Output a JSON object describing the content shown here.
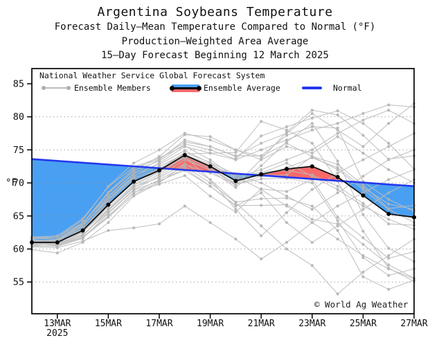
{
  "title": {
    "line1": "Argentina Soybeans Temperature",
    "line2": "Forecast Daily–Mean Temperature Compared to Normal (°F)",
    "line3": "Production–Weighted Area Average",
    "line4": "15–Day Forecast Beginning 12 March 2025"
  },
  "legend": {
    "header": "National Weather Service Global Forecast System",
    "members_label": "Ensemble Members",
    "average_label": "Ensemble Average",
    "normal_label": "Normal"
  },
  "watermark": "© World Ag Weather",
  "colors": {
    "member_line": "#bcbcbc",
    "member_dot": "#b2b2b2",
    "average_line": "#111111",
    "average_dot": "#000000",
    "normal_line": "#2438ee",
    "fill_above_normal": "#f96a6a",
    "fill_below_normal": "#49a0f2",
    "grid": "#8f8f8f",
    "frame": "#000000",
    "text": "#111111"
  },
  "chart_data": {
    "type": "line",
    "title": "Argentina Soybeans Temperature",
    "ylabel": "°F",
    "ylim": [
      50.2,
      87.3
    ],
    "y_ticks": [
      55,
      60,
      65,
      70,
      75,
      80,
      85
    ],
    "grid_levels": [
      55,
      60,
      65,
      70,
      75,
      80
    ],
    "grid": "dotted",
    "days": [
      12,
      13,
      14,
      15,
      16,
      17,
      18,
      19,
      20,
      21,
      22,
      23,
      24,
      25,
      26,
      27
    ],
    "x_tick_days": [
      13,
      15,
      17,
      19,
      21,
      23,
      25,
      27
    ],
    "x_tick_labels": [
      "13MAR",
      "15MAR",
      "17MAR",
      "19MAR",
      "21MAR",
      "23MAR",
      "25MAR",
      "27MAR"
    ],
    "x_year_label": "2025",
    "legend_position": "top-left-inside",
    "series": {
      "normal": {
        "name": "Normal",
        "values": [
          73.6,
          73.33,
          73.05,
          72.78,
          72.51,
          72.23,
          71.96,
          71.69,
          71.41,
          71.14,
          70.87,
          70.59,
          70.32,
          70.05,
          69.77,
          69.5
        ]
      },
      "ensemble_average": {
        "name": "Ensemble Average",
        "values": [
          61.0,
          61.0,
          62.8,
          66.7,
          70.2,
          71.9,
          74.2,
          72.5,
          70.3,
          71.3,
          72.1,
          72.5,
          70.9,
          68.1,
          65.3,
          64.8
        ]
      },
      "ensemble_members": {
        "name": "Ensemble Members",
        "approximate": true,
        "values": [
          [
            61.2,
            61.4,
            63.5,
            67.5,
            71.0,
            73.0,
            75.5,
            74.5,
            73.5,
            75.0,
            76.5,
            78.0,
            79.0,
            80.5,
            81.8,
            81.5
          ],
          [
            60.8,
            60.6,
            62.1,
            65.9,
            69.4,
            70.8,
            72.9,
            70.5,
            67.1,
            67.6,
            67.7,
            66.5,
            62.8,
            55.8,
            53.9,
            55.3
          ],
          [
            61.5,
            61.8,
            64.0,
            68.0,
            71.5,
            73.5,
            76.5,
            75.5,
            74.0,
            76.0,
            77.5,
            80.5,
            78.0,
            75.5,
            79.0,
            82.0
          ],
          [
            60.5,
            60.4,
            61.6,
            65.4,
            68.9,
            70.3,
            71.9,
            69.5,
            66.6,
            66.6,
            66.7,
            64.5,
            63.8,
            60.7,
            57.6,
            55.6
          ],
          [
            61.0,
            61.3,
            63.8,
            68.5,
            71.8,
            74.0,
            77.3,
            77.0,
            75.0,
            73.5,
            75.5,
            74.5,
            77.0,
            74.5,
            72.0,
            70.0
          ],
          [
            61.0,
            60.7,
            61.8,
            64.9,
            68.6,
            69.8,
            71.1,
            68.0,
            65.6,
            69.1,
            68.7,
            70.5,
            64.8,
            61.7,
            58.6,
            59.6
          ],
          [
            60.7,
            60.9,
            62.2,
            65.5,
            69.0,
            71.0,
            73.5,
            72.0,
            70.0,
            71.5,
            73.0,
            71.0,
            69.0,
            66.5,
            64.5,
            63.0
          ],
          [
            61.3,
            61.1,
            63.4,
            67.9,
            71.4,
            72.8,
            74.9,
            73.0,
            70.6,
            71.1,
            71.2,
            74.0,
            72.8,
            69.7,
            66.1,
            66.6
          ],
          [
            60.6,
            60.8,
            62.0,
            65.8,
            69.3,
            71.3,
            74.0,
            70.5,
            66.0,
            62.0,
            65.5,
            69.0,
            71.5,
            73.5,
            75.5,
            77.5
          ],
          [
            61.4,
            61.2,
            63.6,
            67.6,
            71.1,
            72.5,
            74.4,
            74.5,
            74.6,
            79.3,
            78.0,
            76.0,
            70.3,
            62.7,
            57.1,
            55.1
          ],
          [
            60.8,
            60.6,
            61.8,
            65.0,
            68.5,
            70.5,
            72.5,
            70.0,
            67.0,
            63.5,
            60.0,
            57.5,
            53.2,
            56.5,
            59.0,
            61.5
          ],
          [
            61.2,
            61.4,
            63.8,
            68.4,
            71.9,
            73.3,
            75.9,
            75.0,
            73.6,
            77.1,
            78.5,
            79.8,
            80.9,
            79.0,
            76.0,
            72.1
          ],
          [
            60.3,
            60.2,
            61.2,
            62.8,
            63.2,
            63.8,
            66.5,
            64.0,
            61.5,
            58.5,
            61.0,
            64.0,
            66.5,
            68.5,
            70.5,
            72.0
          ],
          [
            61.7,
            61.8,
            64.4,
            69.5,
            73.0,
            75.0,
            77.5,
            76.5,
            75.0,
            74.0,
            76.0,
            74.0,
            72.0,
            69.0,
            66.0,
            64.0
          ],
          [
            60.9,
            61.1,
            62.7,
            66.3,
            69.8,
            71.8,
            74.3,
            72.8,
            71.0,
            69.0,
            66.5,
            64.0,
            61.5,
            59.0,
            57.0,
            55.5
          ],
          [
            61.1,
            60.9,
            62.9,
            67.1,
            70.6,
            72.0,
            74.1,
            72.2,
            69.6,
            73.6,
            77.7,
            81.0,
            80.3,
            77.2,
            73.6,
            74.1
          ],
          [
            60.8,
            61.0,
            62.6,
            66.0,
            69.6,
            71.6,
            74.1,
            72.6,
            70.8,
            72.0,
            73.5,
            75.0,
            77.5,
            79.5,
            81.0,
            79.0
          ],
          [
            61.2,
            61.0,
            63.0,
            67.4,
            70.8,
            72.2,
            74.3,
            72.4,
            69.8,
            70.6,
            70.7,
            70.0,
            64.3,
            58.7,
            56.0,
            57.0
          ],
          [
            61.1,
            61.3,
            63.1,
            66.8,
            70.1,
            72.1,
            74.6,
            73.1,
            71.3,
            70.0,
            68.0,
            66.0,
            68.5,
            71.0,
            73.5,
            75.0
          ],
          [
            60.9,
            60.7,
            62.5,
            66.6,
            70.3,
            71.7,
            73.8,
            71.9,
            69.3,
            72.6,
            76.2,
            79.0,
            73.3,
            65.2,
            60.1,
            58.1
          ],
          [
            59.9,
            59.4,
            61.0,
            64.0,
            68.0,
            70.0,
            72.8,
            71.5,
            69.8,
            71.0,
            72.3,
            73.8,
            72.3,
            69.3,
            66.8,
            66.0
          ],
          [
            61.8,
            62.0,
            64.6,
            69.4,
            72.4,
            73.8,
            75.6,
            73.5,
            70.8,
            71.6,
            71.9,
            71.2,
            69.5,
            66.9,
            63.8,
            63.6
          ],
          [
            60.4,
            60.5,
            61.7,
            64.8,
            68.2,
            70.2,
            72.2,
            69.5,
            66.5,
            68.5,
            64.0,
            61.0,
            63.5,
            66.0,
            68.5,
            70.5
          ],
          [
            61.6,
            61.5,
            63.9,
            68.6,
            72.2,
            73.6,
            76.2,
            75.5,
            74.1,
            74.1,
            77.2,
            78.5,
            78.3,
            70.2,
            67.5,
            65.7
          ]
        ]
      }
    }
  }
}
